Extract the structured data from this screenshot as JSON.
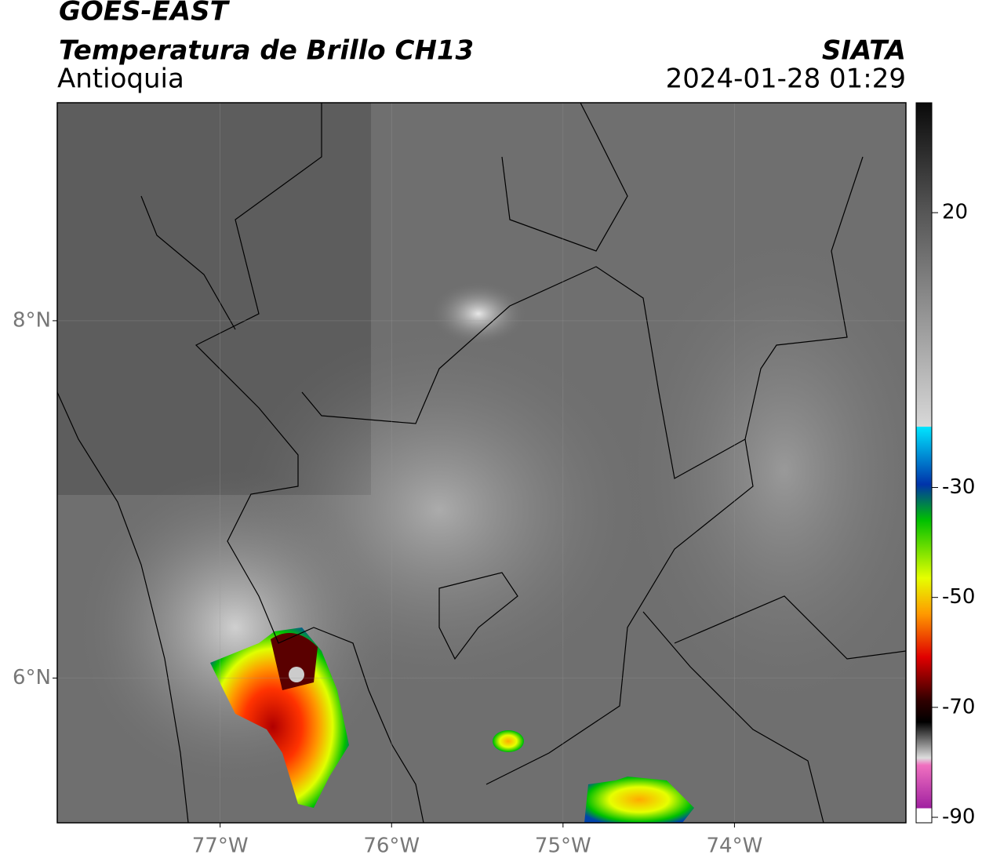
{
  "header": {
    "title": "GOES-EAST",
    "subtitle": "Temperatura de Brillo CH13",
    "region": "Antioquia",
    "source": "SIATA",
    "datetime": "2024-01-28 01:29"
  },
  "map": {
    "xlim": [
      -77.95,
      -73.0
    ],
    "ylim": [
      5.19,
      9.22
    ],
    "xticks": [
      {
        "value": -77,
        "label": "77°W"
      },
      {
        "value": -76,
        "label": "76°W"
      },
      {
        "value": -75,
        "label": "75°W"
      },
      {
        "value": -74,
        "label": "74°W"
      }
    ],
    "yticks": [
      {
        "value": 8,
        "label": "8°N"
      },
      {
        "value": 6,
        "label": "6°N"
      }
    ]
  },
  "colorbar": {
    "lim": [
      -91,
      40
    ],
    "ticks": [
      20,
      -30,
      -50,
      -70,
      -90
    ]
  }
}
